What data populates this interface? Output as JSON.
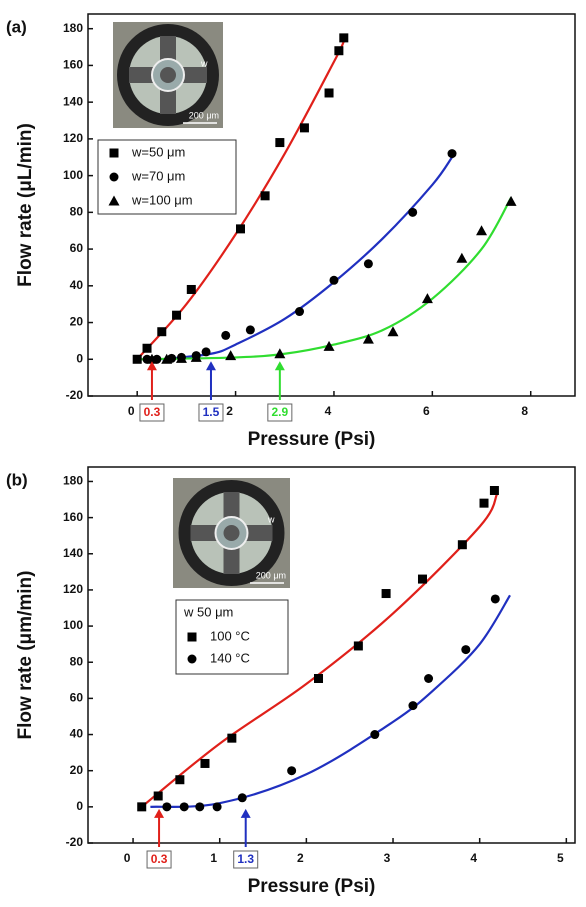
{
  "chart_data": [
    {
      "type": "scatter",
      "panel_label": "(a)",
      "x_label": "Pressure (Psi)",
      "y_label": "Flow rate (μL/min)",
      "xlim": [
        -1,
        8.9
      ],
      "ylim": [
        -20,
        188
      ],
      "xticks": [
        0,
        2,
        4,
        6,
        8
      ],
      "yticks": [
        -20,
        0,
        20,
        40,
        60,
        80,
        100,
        120,
        140,
        160,
        180
      ],
      "inset": {
        "w_label": "w",
        "scale_label": "200 μm"
      },
      "series": [
        {
          "name": "w=50 μm",
          "marker": "square",
          "color": "#000000",
          "fit_color": "#e0201a",
          "x": [
            0,
            0.2,
            0.5,
            0.8,
            1.1,
            2.1,
            2.6,
            2.9,
            3.4,
            3.9,
            4.1,
            4.2
          ],
          "values": [
            0,
            6,
            15,
            24,
            38,
            71,
            89,
            118,
            126,
            145,
            168,
            175
          ],
          "fit_x": [
            0,
            1,
            2,
            3,
            4,
            4.2
          ],
          "fit_values": [
            0,
            30,
            68,
            112,
            162,
            173
          ]
        },
        {
          "name": "w=70 μm",
          "marker": "circle",
          "color": "#000000",
          "fit_color": "#2030c0",
          "x": [
            0.2,
            0.4,
            0.7,
            0.9,
            1.2,
            1.4,
            1.8,
            2.3,
            3.3,
            4,
            4.7,
            5.6,
            6.4
          ],
          "values": [
            0,
            0,
            0.5,
            1,
            2,
            4,
            13,
            16,
            26,
            43,
            52,
            80,
            112
          ],
          "fit_x": [
            0.5,
            1.5,
            2,
            3,
            4,
            5,
            6,
            6.4
          ],
          "fit_values": [
            0,
            3,
            8,
            22,
            42,
            66,
            95,
            110
          ]
        },
        {
          "name": "w=100 μm",
          "marker": "triangle",
          "color": "#000000",
          "fit_color": "#30dd30",
          "x": [
            0.3,
            0.6,
            0.9,
            1.2,
            1.9,
            2.9,
            3.9,
            4.7,
            5.2,
            5.9,
            6.6,
            7,
            7.6
          ],
          "values": [
            0,
            0,
            0.5,
            1,
            2,
            3,
            7,
            11,
            15,
            33,
            55,
            70,
            86
          ],
          "fit_x": [
            0,
            2,
            3,
            4,
            5,
            6,
            7,
            7.6
          ],
          "fit_values": [
            0,
            1,
            3,
            8,
            16,
            33,
            60,
            88
          ]
        }
      ],
      "annotations": [
        {
          "value": 0.3,
          "color": "#e0201a"
        },
        {
          "value": 1.5,
          "color": "#2030c0"
        },
        {
          "value": 2.9,
          "color": "#30dd30"
        }
      ]
    },
    {
      "type": "scatter",
      "panel_label": "(b)",
      "x_label": "Pressure (Psi)",
      "y_label": "Flow rate (μm/min)",
      "xlim": [
        -0.52,
        5.1
      ],
      "ylim": [
        -20,
        188
      ],
      "xticks": [
        0,
        1,
        2,
        3,
        4,
        5
      ],
      "yticks": [
        -20,
        0,
        20,
        40,
        60,
        80,
        100,
        120,
        140,
        160,
        180
      ],
      "inset": {
        "w_label": "w",
        "scale_label": "200 μm"
      },
      "legend_title": "w   50 μm",
      "series": [
        {
          "name": "100 °C",
          "marker": "square",
          "color": "#000000",
          "fit_color": "#e0201a",
          "x": [
            0.1,
            0.29,
            0.54,
            0.83,
            1.14,
            2.14,
            2.6,
            2.92,
            3.34,
            3.8,
            4.05,
            4.17
          ],
          "values": [
            0,
            6,
            15,
            24,
            38,
            71,
            89,
            118,
            126,
            145,
            168,
            175
          ],
          "fit_x": [
            0.1,
            1,
            2,
            3,
            4,
            4.2
          ],
          "fit_values": [
            0,
            35,
            68,
            107,
            155,
            173
          ]
        },
        {
          "name": "140 °C",
          "marker": "circle",
          "color": "#000000",
          "fit_color": "#2030c0",
          "x": [
            0.39,
            0.59,
            0.77,
            0.97,
            1.26,
            1.83,
            2.79,
            3.23,
            3.41,
            3.84,
            4.18
          ],
          "values": [
            0,
            0,
            0,
            0,
            5,
            20,
            40,
            56,
            71,
            87,
            115
          ],
          "fit_x": [
            0.2,
            1,
            2,
            3,
            3.5,
            4,
            4.35
          ],
          "fit_values": [
            0,
            2,
            18,
            47,
            66,
            90,
            117
          ]
        }
      ],
      "annotations": [
        {
          "value": 0.3,
          "color": "#e0201a"
        },
        {
          "value": 1.3,
          "color": "#2030c0"
        }
      ]
    }
  ]
}
